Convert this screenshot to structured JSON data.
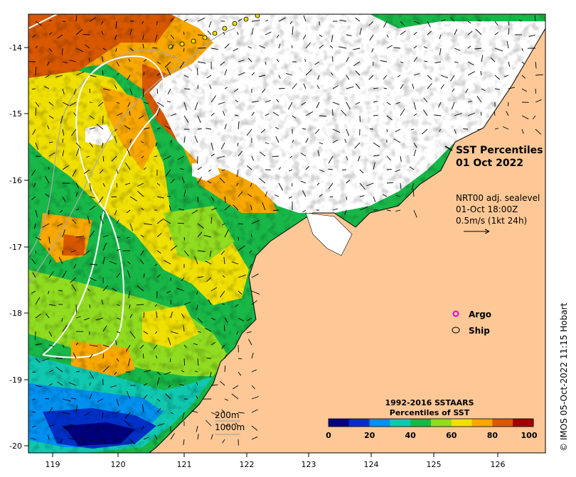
{
  "map": {
    "title_line1": "SST Percentiles",
    "title_line2": "01 Oct 2022",
    "velocity_source": "NRT00 adj. sealevel",
    "velocity_time": "01-Oct 18:00Z",
    "velocity_scale": "0.5m/s (1kt 24h)",
    "credit": "© IMOS 05-Oct-2022 11:15 Hobart",
    "lon_ticks": [
      "119",
      "120",
      "121",
      "122",
      "123",
      "124",
      "125",
      "126"
    ],
    "lat_ticks": [
      "-14",
      "-15",
      "-16",
      "-17",
      "-18",
      "-19",
      "-20"
    ],
    "contour_labels": [
      "200m",
      "1000m"
    ],
    "colors": {
      "land": "#fec896",
      "no_data": "#ffffff",
      "argo": "#e000e0"
    }
  },
  "legend": {
    "argo_label": "Argo",
    "ship_label": "Ship"
  },
  "colorbar": {
    "title_line1": "1992-2016 SSTAARS",
    "title_line2": "Percentiles of SST",
    "ticks": [
      "0",
      "20",
      "40",
      "60",
      "80",
      "100"
    ],
    "colors": [
      "#00007f",
      "#0030c8",
      "#0090f0",
      "#10c8b0",
      "#18b848",
      "#90dc20",
      "#f0e000",
      "#f8a800",
      "#d85800",
      "#a00000"
    ]
  }
}
